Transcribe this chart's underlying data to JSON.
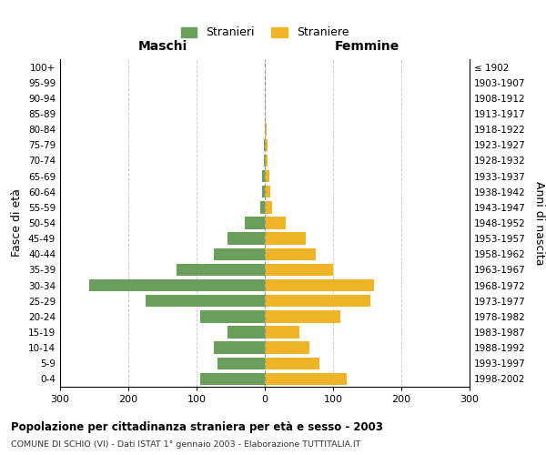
{
  "age_groups": [
    "0-4",
    "5-9",
    "10-14",
    "15-19",
    "20-24",
    "25-29",
    "30-34",
    "35-39",
    "40-44",
    "45-49",
    "50-54",
    "55-59",
    "60-64",
    "65-69",
    "70-74",
    "75-79",
    "80-84",
    "85-89",
    "90-94",
    "95-99",
    "100+"
  ],
  "birth_years": [
    "1998-2002",
    "1993-1997",
    "1988-1992",
    "1983-1987",
    "1978-1982",
    "1973-1977",
    "1968-1972",
    "1963-1967",
    "1958-1962",
    "1953-1957",
    "1948-1952",
    "1943-1947",
    "1938-1942",
    "1933-1937",
    "1928-1932",
    "1923-1927",
    "1918-1922",
    "1913-1917",
    "1908-1912",
    "1903-1907",
    "≤ 1902"
  ],
  "maschi": [
    95,
    70,
    75,
    55,
    95,
    175,
    258,
    130,
    75,
    55,
    30,
    7,
    4,
    4,
    2,
    2,
    0,
    0,
    0,
    0,
    0
  ],
  "femmine": [
    120,
    80,
    65,
    50,
    110,
    155,
    160,
    100,
    75,
    60,
    30,
    10,
    8,
    6,
    4,
    4,
    2,
    0,
    0,
    0,
    0
  ],
  "color_maschi": "#6a9f5b",
  "color_femmine": "#f0b429",
  "title": "Popolazione per cittadinanza straniera per età e sesso - 2003",
  "subtitle": "COMUNE DI SCHIO (VI) - Dati ISTAT 1° gennaio 2003 - Elaborazione TUTTITALIA.IT",
  "ylabel_left": "Fasce di età",
  "ylabel_right": "Anni di nascita",
  "xlabel_maschi": "Maschi",
  "xlabel_femmine": "Femmine",
  "legend_maschi": "Stranieri",
  "legend_femmine": "Straniere",
  "xlim": 300,
  "background_color": "#ffffff",
  "grid_color": "#cccccc"
}
